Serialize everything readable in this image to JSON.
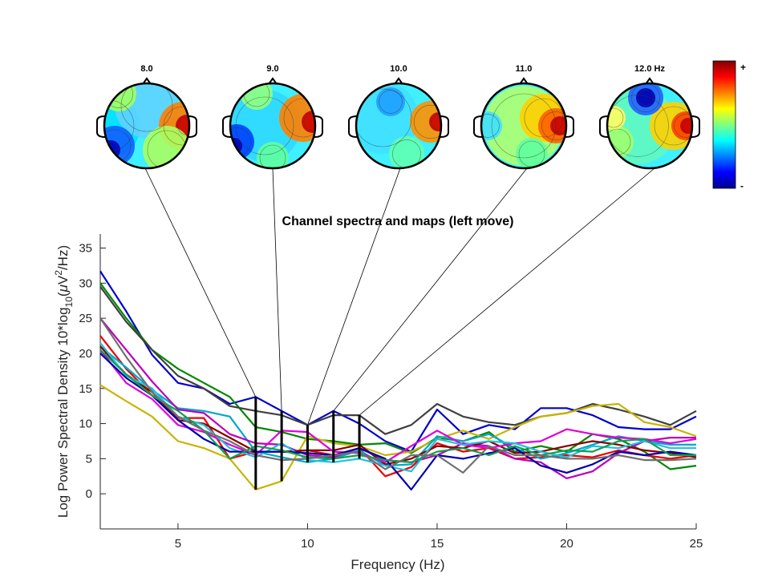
{
  "chart_data": {
    "type": "line",
    "title": "Channel spectra and maps (left move)",
    "xlabel": "Frequency (Hz)",
    "ylabel_parts": [
      "Log Power Spectral Density 10*log",
      "10",
      "(",
      "μ",
      "V",
      "2",
      "/Hz)"
    ],
    "xlim": [
      2,
      25
    ],
    "ylim": [
      -5,
      37
    ],
    "xticks": [
      5,
      10,
      15,
      20,
      25
    ],
    "yticks": [
      0,
      5,
      10,
      15,
      20,
      25,
      30,
      35
    ],
    "x": [
      2,
      3,
      4,
      5,
      6,
      7,
      8,
      9,
      10,
      11,
      12,
      13,
      14,
      15,
      16,
      17,
      18,
      19,
      20,
      21,
      22,
      23,
      24,
      25
    ],
    "series": [
      {
        "color": "#0000cc",
        "values": [
          31.7,
          26.0,
          19.8,
          15.8,
          15.0,
          12.8,
          13.8,
          11.8,
          9.8,
          11.8,
          10.0,
          7.5,
          6.0,
          12.0,
          8.5,
          9.8,
          9.2,
          12.2,
          12.2,
          11.2,
          9.5,
          9.2,
          9.2,
          11.0
        ]
      },
      {
        "color": "#008800",
        "values": [
          30.0,
          25.0,
          20.5,
          17.8,
          15.8,
          13.8,
          9.5,
          8.8,
          7.8,
          7.5,
          7.0,
          7.2,
          5.8,
          8.0,
          7.5,
          8.8,
          6.0,
          6.8,
          6.0,
          8.5,
          7.8,
          6.0,
          3.5,
          4.0
        ]
      },
      {
        "color": "#404040",
        "values": [
          29.5,
          24.5,
          20.5,
          16.8,
          15.0,
          12.5,
          11.8,
          11.2,
          9.8,
          11.2,
          11.2,
          8.5,
          9.8,
          12.8,
          11.0,
          10.2,
          9.8,
          11.0,
          11.5,
          12.8,
          12.0,
          11.0,
          9.8,
          11.8
        ]
      },
      {
        "color": "#c8b400",
        "values": [
          15.5,
          13.2,
          11.0,
          7.5,
          6.5,
          5.0,
          0.6,
          1.8,
          8.2,
          7.2,
          6.8,
          5.5,
          6.0,
          7.8,
          9.0,
          7.8,
          9.5,
          11.0,
          11.5,
          12.5,
          12.8,
          10.2,
          9.5,
          8.2
        ]
      },
      {
        "color": "#ee0000",
        "values": [
          22.5,
          17.8,
          14.0,
          10.8,
          10.8,
          5.0,
          6.0,
          6.0,
          6.2,
          5.5,
          6.5,
          2.5,
          3.8,
          7.2,
          6.0,
          6.5,
          5.0,
          5.2,
          5.5,
          5.2,
          6.2,
          5.5,
          5.0,
          5.5
        ]
      },
      {
        "color": "#00a8c8",
        "values": [
          21.0,
          18.0,
          14.8,
          12.2,
          11.8,
          11.0,
          6.0,
          5.2,
          4.5,
          5.0,
          6.2,
          4.0,
          4.2,
          8.2,
          7.5,
          8.5,
          6.5,
          5.0,
          5.8,
          7.0,
          8.2,
          7.5,
          7.0,
          7.0
        ]
      },
      {
        "color": "#bb00bb",
        "values": [
          25.0,
          20.5,
          16.0,
          12.0,
          11.5,
          8.5,
          7.2,
          7.0,
          5.5,
          5.2,
          6.5,
          4.8,
          4.5,
          5.5,
          7.2,
          6.8,
          5.0,
          4.5,
          2.2,
          3.2,
          5.8,
          7.5,
          8.0,
          8.0
        ]
      },
      {
        "color": "#880000",
        "values": [
          21.0,
          17.0,
          14.5,
          10.5,
          10.0,
          8.0,
          6.0,
          6.0,
          6.2,
          6.2,
          7.0,
          4.2,
          5.0,
          6.8,
          6.5,
          7.5,
          5.8,
          6.0,
          6.8,
          7.5,
          7.0,
          6.2,
          5.8,
          5.2
        ]
      },
      {
        "color": "#dd00dd",
        "values": [
          20.5,
          15.8,
          13.5,
          9.8,
          8.8,
          7.0,
          5.5,
          9.0,
          8.8,
          6.0,
          5.8,
          4.5,
          6.8,
          9.0,
          7.0,
          6.5,
          7.2,
          7.5,
          9.2,
          8.5,
          8.0,
          7.8,
          7.2,
          7.8
        ]
      },
      {
        "color": "#20c0e0",
        "values": [
          21.5,
          16.8,
          15.0,
          11.0,
          9.8,
          6.5,
          5.2,
          7.2,
          4.8,
          4.5,
          5.0,
          4.0,
          3.2,
          7.8,
          7.0,
          7.5,
          7.2,
          6.0,
          5.2,
          6.8,
          6.5,
          7.5,
          6.5,
          6.5
        ]
      },
      {
        "color": "#0000aa",
        "values": [
          20.0,
          16.5,
          14.0,
          10.5,
          7.8,
          6.0,
          6.0,
          6.0,
          5.8,
          5.5,
          6.5,
          5.0,
          0.6,
          5.5,
          5.0,
          5.8,
          6.5,
          4.0,
          3.0,
          4.2,
          6.0,
          5.5,
          6.0,
          5.5
        ]
      },
      {
        "color": "#10a050",
        "values": [
          20.5,
          17.0,
          14.0,
          11.8,
          9.0,
          5.0,
          6.8,
          6.2,
          5.2,
          5.0,
          5.5,
          4.8,
          4.5,
          6.0,
          6.5,
          5.5,
          6.8,
          5.5,
          6.2,
          6.0,
          7.5,
          7.8,
          5.5,
          5.5
        ]
      },
      {
        "color": "#707070",
        "values": [
          25.0,
          19.5,
          14.5,
          11.0,
          9.0,
          7.5,
          5.5,
          4.8,
          5.0,
          5.5,
          6.0,
          3.5,
          5.5,
          5.5,
          3.0,
          6.8,
          5.5,
          5.5,
          5.0,
          5.0,
          5.5,
          4.8,
          4.8,
          5.0
        ]
      }
    ],
    "marker_freqs": [
      8,
      9,
      10,
      11,
      12
    ],
    "maps": [
      {
        "label": "8.0",
        "pattern": "a"
      },
      {
        "label": "9.0",
        "pattern": "b"
      },
      {
        "label": "10.0",
        "pattern": "c"
      },
      {
        "label": "11.0",
        "pattern": "d"
      },
      {
        "label": "12.0 Hz",
        "pattern": "e"
      }
    ],
    "colorbar": {
      "top_label": "+",
      "bottom_label": "-"
    }
  }
}
